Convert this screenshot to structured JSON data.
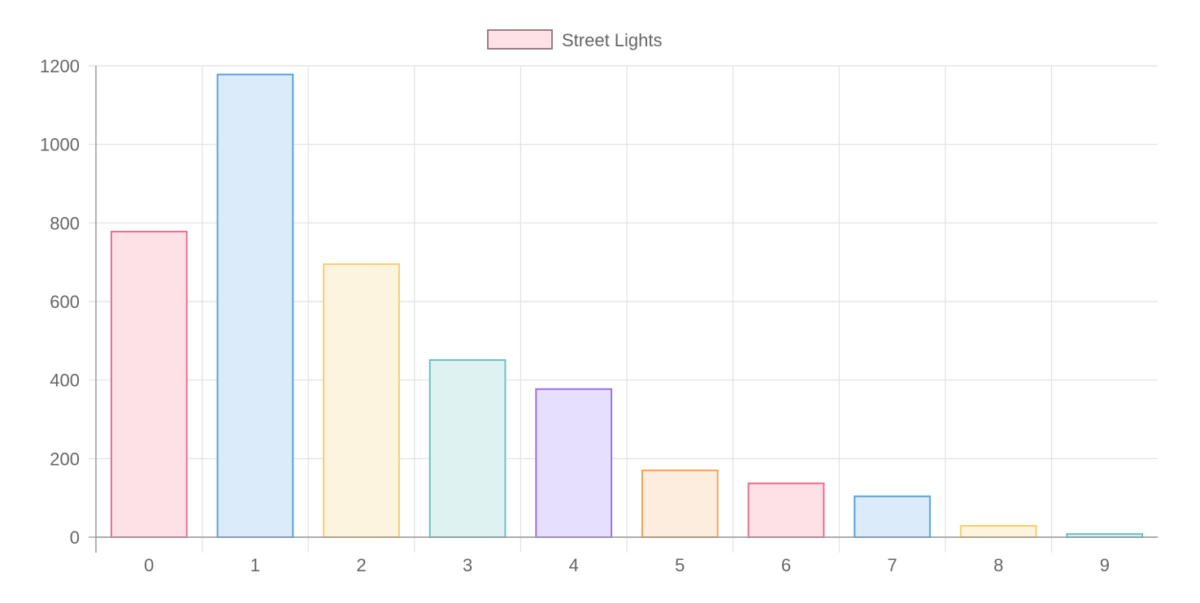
{
  "chart_data": {
    "type": "bar",
    "categories": [
      "0",
      "1",
      "2",
      "3",
      "4",
      "5",
      "6",
      "7",
      "8",
      "9"
    ],
    "series": [
      {
        "name": "Street Lights",
        "values": [
          778,
          1178,
          695,
          451,
          377,
          170,
          137,
          104,
          29,
          8
        ]
      }
    ],
    "ylim": [
      0,
      1200
    ],
    "yticks": [
      "0",
      "200",
      "400",
      "600",
      "800",
      "1000",
      "1200"
    ],
    "grid": true,
    "legend_position": "top-center",
    "colors": [
      {
        "fill": "#fde1e6",
        "stroke": "#ec6f8c"
      },
      {
        "fill": "#dbebfa",
        "stroke": "#58a3dd"
      },
      {
        "fill": "#fdf4df",
        "stroke": "#f7ce6b"
      },
      {
        "fill": "#def2f1",
        "stroke": "#6cc0bf"
      },
      {
        "fill": "#e6e0fc",
        "stroke": "#9d70e9"
      },
      {
        "fill": "#fdeddf",
        "stroke": "#f2a455"
      },
      {
        "fill": "#fde1e6",
        "stroke": "#ec6f8c"
      },
      {
        "fill": "#dbebfa",
        "stroke": "#58a3dd"
      },
      {
        "fill": "#fdf4df",
        "stroke": "#f7ce6b"
      },
      {
        "fill": "#def2f1",
        "stroke": "#6cc0bf"
      }
    ],
    "legend_swatch": {
      "fill": "#fde1e6",
      "stroke": "#7a5a60"
    }
  }
}
